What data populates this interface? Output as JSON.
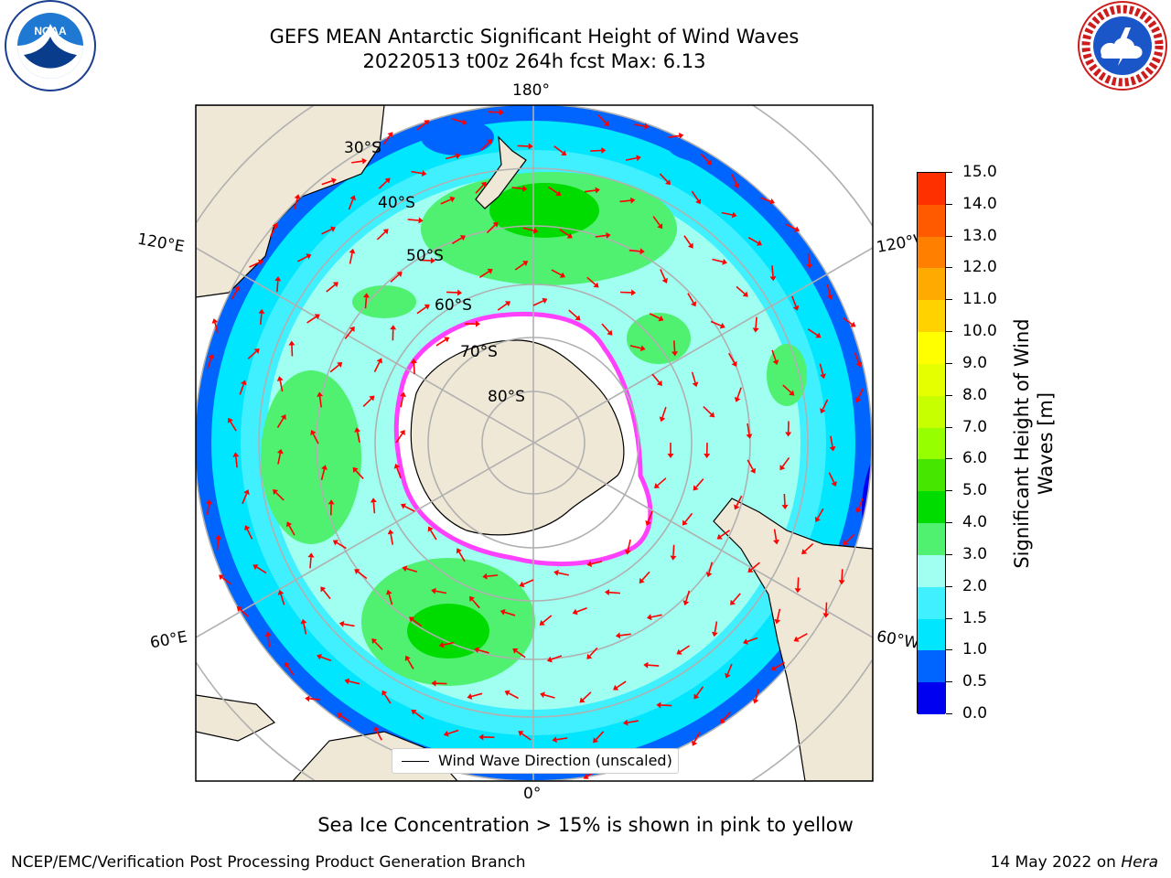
{
  "header": {
    "title_line1": "GEFS MEAN Antarctic Significant Height of Wind Waves",
    "title_line2": "20220513 t00z 264h fcst   Max: 6.13"
  },
  "logos": {
    "left": "NOAA",
    "left_ring_text": "NATIONAL OCEANIC AND ATMOSPHERIC ADMINISTRATION · U.S. DEPARTMENT OF COMMERCE",
    "right_ring_text": "NATIONAL WEATHER SERVICE"
  },
  "map": {
    "lon_labels": {
      "top": "180°",
      "bottom": "0°",
      "left_upper": "120°E",
      "left_lower": "60°E",
      "right_upper": "120°W",
      "right_lower": "60°W"
    },
    "lat_labels": [
      "30°S",
      "40°S",
      "50°S",
      "60°S",
      "70°S",
      "80°S"
    ],
    "ocean_colors": {
      "lt_1": "#0064ff",
      "1_to_1_5": "#00e6ff",
      "1_5_to_2": "#40f0ff",
      "2_to_3": "#a0fff0",
      "3_to_4": "#50f070",
      "4_to_5": "#00dc00"
    },
    "land_color": "#efe8d6",
    "ice_color": "#ffffff",
    "ice_edge_color": "#ff40ff",
    "arrow_color": "#ff0000"
  },
  "legend": {
    "entry": "Wind Wave Direction (unscaled)"
  },
  "colorbar": {
    "label": "Significant Height of Wind Waves [m]",
    "ticks": [
      "15.0",
      "14.0",
      "13.0",
      "12.0",
      "11.0",
      "10.0",
      "9.0",
      "8.0",
      "7.0",
      "6.0",
      "5.0",
      "4.0",
      "3.0",
      "2.0",
      "1.5",
      "1.0",
      "0.5",
      "0.0"
    ],
    "colors": [
      "#ff0000",
      "#ff3000",
      "#ff5a00",
      "#ff8000",
      "#ffaa00",
      "#ffd200",
      "#ffff00",
      "#e6ff00",
      "#c8ff00",
      "#96ff00",
      "#46e600",
      "#00dc00",
      "#50f070",
      "#a0fff0",
      "#40f0ff",
      "#00e6ff",
      "#0064ff",
      "#0000f0"
    ]
  },
  "footer": {
    "note": "Sea Ice Concentration > 15% is shown in pink to yellow",
    "left": "NCEP/EMC/Verification Post Processing Product Generation Branch",
    "right_prefix": "14 May 2022 on ",
    "right_host": "Hera"
  }
}
